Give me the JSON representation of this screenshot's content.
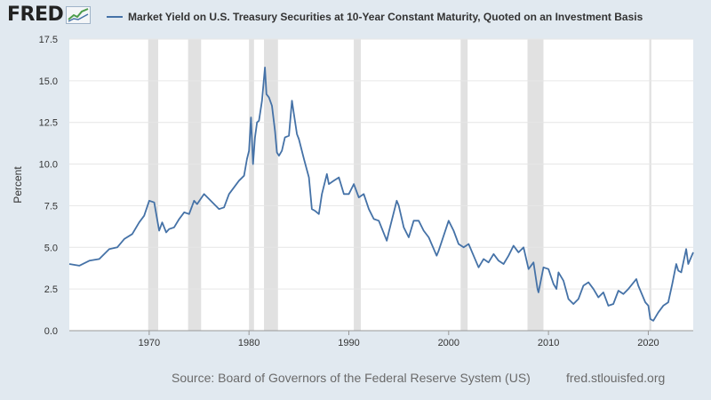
{
  "header": {
    "logo": "FRED",
    "legend_label": "Market Yield on U.S. Treasury Securities at 10-Year Constant Maturity, Quoted on an Investment Basis"
  },
  "footer": {
    "source": "Source: Board of Governors of the Federal Reserve System (US)",
    "site": "fred.stlouisfed.org"
  },
  "colors": {
    "line": "#4572a7",
    "recession": "#e1e1e1",
    "background": "#e1e9f0",
    "plot": "#ffffff"
  },
  "chart_data": {
    "type": "line",
    "title": "",
    "xlabel": "",
    "ylabel": "Percent",
    "xlim": [
      1962,
      2024.5
    ],
    "ylim": [
      0,
      17.5
    ],
    "grid": true,
    "legend_position": "top",
    "yticks": [
      0.0,
      2.5,
      5.0,
      7.5,
      10.0,
      12.5,
      15.0,
      17.5
    ],
    "ytick_labels": [
      "0.0",
      "2.5",
      "5.0",
      "7.5",
      "10.0",
      "12.5",
      "15.0",
      "17.5"
    ],
    "xticks": [
      1970,
      1980,
      1990,
      2000,
      2010,
      2020
    ],
    "xtick_labels": [
      "1970",
      "1980",
      "1990",
      "2000",
      "2010",
      "2020"
    ],
    "recessions": [
      [
        1969.9,
        1970.9
      ],
      [
        1973.9,
        1975.2
      ],
      [
        1980.0,
        1980.5
      ],
      [
        1981.5,
        1982.9
      ],
      [
        1990.5,
        1991.2
      ],
      [
        2001.2,
        2001.9
      ],
      [
        2007.9,
        2009.5
      ],
      [
        2020.1,
        2020.3
      ]
    ],
    "series": [
      {
        "x": [
          1962.0,
          1963.0,
          1964.0,
          1965.0,
          1966.0,
          1966.8,
          1967.5,
          1968.3,
          1969.0,
          1969.5,
          1970.0,
          1970.5,
          1971.0,
          1971.3,
          1971.7,
          1972.0,
          1972.5,
          1973.0,
          1973.5,
          1974.0,
          1974.5,
          1974.8,
          1975.5,
          1976.0,
          1976.5,
          1977.0,
          1977.5,
          1978.0,
          1978.5,
          1979.0,
          1979.5,
          1979.8,
          1980.0,
          1980.2,
          1980.4,
          1980.6,
          1980.8,
          1981.0,
          1981.3,
          1981.6,
          1981.75,
          1982.0,
          1982.3,
          1982.6,
          1982.8,
          1983.0,
          1983.3,
          1983.6,
          1984.0,
          1984.3,
          1984.5,
          1984.8,
          1985.0,
          1985.5,
          1986.0,
          1986.3,
          1986.6,
          1987.0,
          1987.3,
          1987.8,
          1988.0,
          1988.5,
          1989.0,
          1989.5,
          1990.0,
          1990.5,
          1991.0,
          1991.5,
          1992.0,
          1992.5,
          1993.0,
          1993.8,
          1994.0,
          1994.8,
          1995.0,
          1995.5,
          1996.0,
          1996.5,
          1997.0,
          1997.5,
          1998.0,
          1998.8,
          1999.0,
          2000.0,
          2000.5,
          2001.0,
          2001.5,
          2002.0,
          2002.5,
          2003.0,
          2003.5,
          2004.0,
          2004.5,
          2005.0,
          2005.5,
          2006.0,
          2006.5,
          2007.0,
          2007.5,
          2008.0,
          2008.5,
          2008.9,
          2009.0,
          2009.5,
          2010.0,
          2010.5,
          2010.8,
          2011.0,
          2011.5,
          2012.0,
          2012.5,
          2013.0,
          2013.5,
          2014.0,
          2014.5,
          2015.0,
          2015.5,
          2016.0,
          2016.5,
          2017.0,
          2017.5,
          2018.0,
          2018.8,
          2019.0,
          2019.7,
          2020.0,
          2020.2,
          2020.5,
          2021.0,
          2021.5,
          2022.0,
          2022.4,
          2022.8,
          2023.0,
          2023.3,
          2023.8,
          2024.0,
          2024.5
        ],
        "values": [
          4.0,
          3.9,
          4.2,
          4.3,
          4.9,
          5.0,
          5.5,
          5.8,
          6.5,
          6.9,
          7.8,
          7.7,
          6.0,
          6.5,
          5.9,
          6.1,
          6.2,
          6.7,
          7.1,
          7.0,
          7.8,
          7.6,
          8.2,
          7.9,
          7.6,
          7.3,
          7.4,
          8.2,
          8.6,
          9.0,
          9.3,
          10.3,
          10.8,
          12.8,
          10.0,
          11.6,
          12.5,
          12.6,
          13.8,
          15.8,
          14.2,
          14.0,
          13.5,
          12.0,
          10.7,
          10.5,
          10.8,
          11.6,
          11.7,
          13.8,
          13.0,
          11.8,
          11.5,
          10.3,
          9.2,
          7.3,
          7.2,
          7.0,
          8.2,
          9.4,
          8.8,
          9.0,
          9.2,
          8.2,
          8.2,
          8.8,
          8.0,
          8.2,
          7.3,
          6.7,
          6.6,
          5.4,
          5.9,
          7.8,
          7.5,
          6.2,
          5.6,
          6.6,
          6.6,
          6.0,
          5.6,
          4.5,
          4.8,
          6.6,
          6.0,
          5.2,
          5.0,
          5.2,
          4.5,
          3.8,
          4.3,
          4.1,
          4.6,
          4.2,
          4.0,
          4.5,
          5.1,
          4.7,
          5.0,
          3.7,
          4.1,
          2.5,
          2.3,
          3.8,
          3.7,
          2.8,
          2.5,
          3.5,
          3.0,
          1.9,
          1.6,
          1.9,
          2.7,
          2.9,
          2.5,
          2.0,
          2.3,
          1.5,
          1.6,
          2.4,
          2.2,
          2.5,
          3.1,
          2.7,
          1.7,
          1.5,
          0.7,
          0.6,
          1.1,
          1.5,
          1.7,
          2.8,
          4.0,
          3.6,
          3.5,
          4.9,
          4.0,
          4.7
        ]
      }
    ]
  }
}
